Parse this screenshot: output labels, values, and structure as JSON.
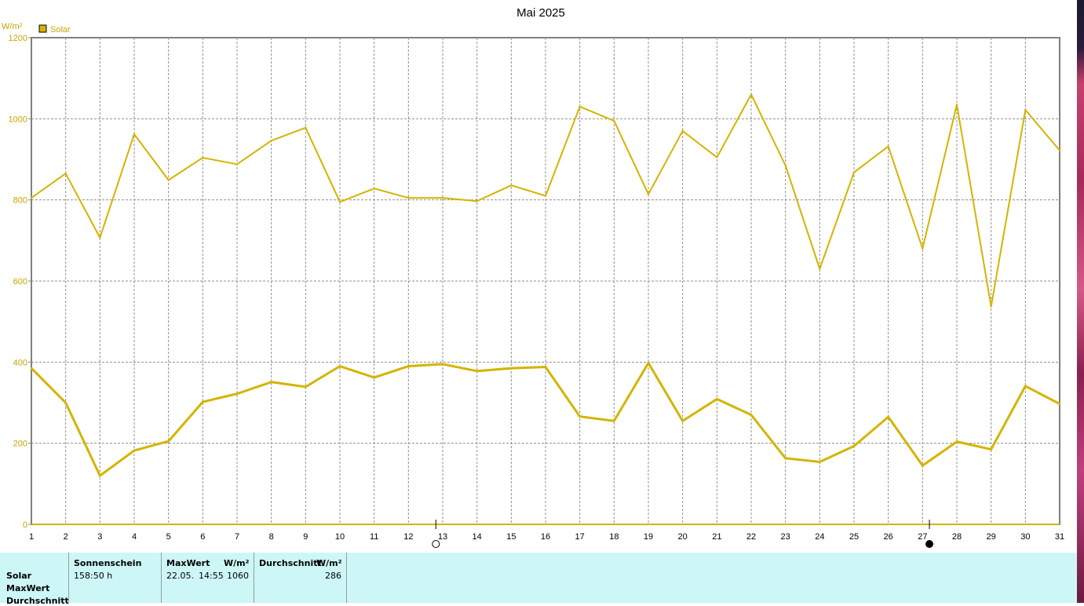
{
  "chart_data": {
    "type": "line",
    "title": "Mai 2025",
    "ylabel": "W/m²",
    "ylim": [
      0,
      1200
    ],
    "yticks": [
      0,
      200,
      400,
      600,
      800,
      1000,
      1200
    ],
    "x": [
      1,
      2,
      3,
      4,
      5,
      6,
      7,
      8,
      9,
      10,
      11,
      12,
      13,
      14,
      15,
      16,
      17,
      18,
      19,
      20,
      21,
      22,
      23,
      24,
      25,
      26,
      27,
      28,
      29,
      30,
      31
    ],
    "xlim": [
      1,
      31
    ],
    "grid": true,
    "legend_position": "top-left",
    "legend_label": "Solar",
    "series": [
      {
        "name": "Solar",
        "kind": "max",
        "values": [
          805,
          865,
          707,
          962,
          849,
          904,
          888,
          946,
          978,
          795,
          828,
          805,
          805,
          797,
          836,
          810,
          1030,
          995,
          814,
          970,
          905,
          1060,
          885,
          630,
          868,
          932,
          680,
          1035,
          537,
          1022,
          922
        ]
      },
      {
        "name": "Solar",
        "kind": "avg",
        "values": [
          385,
          300,
          120,
          182,
          205,
          302,
          322,
          351,
          339,
          390,
          362,
          390,
          395,
          378,
          385,
          388,
          266,
          255,
          398,
          255,
          309,
          270,
          163,
          154,
          193,
          265,
          145,
          204,
          185,
          341,
          297
        ]
      }
    ],
    "moon_markers": [
      {
        "day": 12.8,
        "phase": "full"
      },
      {
        "day": 27.2,
        "phase": "new"
      }
    ]
  },
  "colors": {
    "series": "#d4b400",
    "axis": "#808080",
    "label": "#c8a400",
    "legend_box": "#d4b400"
  },
  "table": {
    "row_labels": [
      "Solar",
      "MaxWert",
      "Durchschnitt"
    ],
    "sonnenschein": {
      "header": "Sonnenschein",
      "value": "158:50 h"
    },
    "maxwert": {
      "header": "MaxWert",
      "unit": "W/m²",
      "date": "22.05.",
      "time": "14:55",
      "value": "1060"
    },
    "durchschnitt": {
      "header": "Durchschnitt",
      "unit": "W/m²",
      "value": "286"
    }
  }
}
